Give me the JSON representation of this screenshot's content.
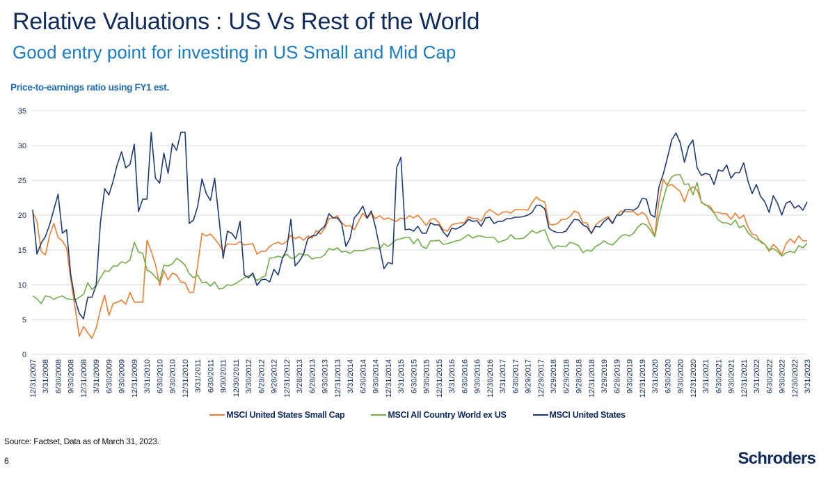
{
  "header": {
    "title": "Relative Valuations : US Vs Rest of the World",
    "subtitle": "Good entry point for investing in US Small and Mid Cap"
  },
  "footer": {
    "source": "Source: Factset, Data as of March 31, 2023.",
    "page_number": "6",
    "logo": "Schroders"
  },
  "colors": {
    "title": "#0f2b5b",
    "subtitle": "#1b7bc4",
    "small_cap": "#ed7d31",
    "acwi_ex_us": "#70ad47",
    "us": "#1f3a73"
  },
  "chart_data": {
    "type": "line",
    "title": "Price-to-earnings ratio using FY1 est.",
    "xlabel": "",
    "ylabel": "",
    "ylim": [
      0,
      35
    ],
    "y_ticks": [
      0,
      5,
      10,
      15,
      20,
      25,
      30,
      35
    ],
    "grid": "horizontal",
    "legend_position": "bottom",
    "x_tick_labels": [
      "12/31/2007",
      "3/31/2008",
      "6/30/2008",
      "9/30/2008",
      "12/31/2008",
      "3/31/2009",
      "6/30/2009",
      "9/30/2009",
      "12/31/2009",
      "3/31/2010",
      "6/30/2010",
      "9/30/2010",
      "12/31/2010",
      "3/31/2011",
      "6/30/2011",
      "9/30/2011",
      "12/30/2011",
      "3/30/2012",
      "6/29/2012",
      "9/28/2012",
      "12/31/2012",
      "3/28/2013",
      "6/28/2013",
      "9/30/2013",
      "12/31/2013",
      "3/31/2014",
      "6/30/2014",
      "9/30/2014",
      "12/31/2014",
      "3/31/2015",
      "6/30/2015",
      "9/30/2015",
      "12/31/2015",
      "3/31/2016",
      "6/30/2016",
      "9/30/2016",
      "12/30/2016",
      "3/31/2017",
      "6/30/2017",
      "9/29/2017",
      "12/29/2017",
      "3/29/2018",
      "6/29/2018",
      "9/28/2018",
      "12/31/2018",
      "3/29/2019",
      "6/28/2019",
      "9/30/2019",
      "12/31/2019",
      "3/31/2020",
      "6/30/2020",
      "9/30/2020",
      "12/31/2020",
      "3/31/2021",
      "6/30/2021",
      "9/30/2021",
      "12/31/2021",
      "3/31/2022",
      "6/30/2022",
      "9/30/2022",
      "12/30/2022",
      "3/31/2023"
    ],
    "series": [
      {
        "name": "MSCI United States Small Cap",
        "color": "#ed7d31",
        "values": [
          20.4,
          19.1,
          14.8,
          14.3,
          17.1,
          18.8,
          16.8,
          16.3,
          15.3,
          10.8,
          6.8,
          2.6,
          4.0,
          3.1,
          2.3,
          3.8,
          6.4,
          8.5,
          5.6,
          7.3,
          7.5,
          7.8,
          7.2,
          8.9,
          7.5,
          7.5,
          7.5,
          16.4,
          14.8,
          12.9,
          9.9,
          12.0,
          10.7,
          11.7,
          11.4,
          10.4,
          10.3,
          8.9,
          8.9,
          12.9,
          17.4,
          17.0,
          17.3,
          16.6,
          15.8,
          14.8,
          15.9,
          15.8,
          15.8,
          16.2,
          15.7,
          15.8,
          15.9,
          14.4,
          14.8,
          14.8,
          15.5,
          15.9,
          16.1,
          15.8,
          16.2,
          17.1,
          16.6,
          16.9,
          16.4,
          17.0,
          16.7,
          17.8,
          17.3,
          18.1,
          19.5,
          19.6,
          19.9,
          18.9,
          18.4,
          18.5,
          17.9,
          19.1,
          20.3,
          19.5,
          20.3,
          19.5,
          19.9,
          19.4,
          19.6,
          19.3,
          19.1,
          19.6,
          19.4,
          19.9,
          19.6,
          20.0,
          19.3,
          18.5,
          19.4,
          19.5,
          18.9,
          17.9,
          17.7,
          18.6,
          18.8,
          18.9,
          18.9,
          19.8,
          19.5,
          19.5,
          19.1,
          20.3,
          20.8,
          20.4,
          20.0,
          20.4,
          20.5,
          20.3,
          20.8,
          20.8,
          20.8,
          20.7,
          21.8,
          22.6,
          22.1,
          21.9,
          18.7,
          18.6,
          18.8,
          19.4,
          19.4,
          19.8,
          20.6,
          20.3,
          18.9,
          18.9,
          17.3,
          18.6,
          19.1,
          19.5,
          19.8,
          18.9,
          20.0,
          20.6,
          20.5,
          20.5,
          20.5,
          20.0,
          20.4,
          19.9,
          18.4,
          17.1,
          22.1,
          25.1,
          24.2,
          24.4,
          23.9,
          23.4,
          21.9,
          23.6,
          24.1,
          23.6,
          21.9,
          21.4,
          21.3,
          20.4,
          20.4,
          20.2,
          20.2,
          19.4,
          20.3,
          19.5,
          20.0,
          18.3,
          17.3,
          17.1,
          16.1,
          15.8,
          14.8,
          15.8,
          15.2,
          14.3,
          15.9,
          16.6,
          16.0,
          17.0,
          16.3,
          16.3
        ]
      },
      {
        "name": "MSCI All Country World ex US",
        "color": "#70ad47",
        "values": [
          8.4,
          8.0,
          7.3,
          8.4,
          8.3,
          7.9,
          8.2,
          8.4,
          8.0,
          7.9,
          7.8,
          8.2,
          8.6,
          10.3,
          9.3,
          9.9,
          11.0,
          12.0,
          11.9,
          12.7,
          12.7,
          13.3,
          13.1,
          13.6,
          16.1,
          14.7,
          14.5,
          12.1,
          11.8,
          11.1,
          10.5,
          12.8,
          12.7,
          13.0,
          13.8,
          13.4,
          12.8,
          11.6,
          11.0,
          11.4,
          10.3,
          10.4,
          9.8,
          10.4,
          9.4,
          9.5,
          10.0,
          9.9,
          10.2,
          10.6,
          11.0,
          11.3,
          11.3,
          10.6,
          11.0,
          11.3,
          13.8,
          13.9,
          14.1,
          13.9,
          14.4,
          13.8,
          13.9,
          14.5,
          14.3,
          14.3,
          13.7,
          13.9,
          13.9,
          14.3,
          15.2,
          15.0,
          15.3,
          14.7,
          14.8,
          14.5,
          14.9,
          14.9,
          14.9,
          15.1,
          15.3,
          15.3,
          15.2,
          15.9,
          15.5,
          16.0,
          16.5,
          16.6,
          16.8,
          16.8,
          15.9,
          16.6,
          15.5,
          15.2,
          16.3,
          16.3,
          16.4,
          15.8,
          15.9,
          16.1,
          16.3,
          16.4,
          16.8,
          17.2,
          16.7,
          17.0,
          17.0,
          16.8,
          16.8,
          16.8,
          16.1,
          16.3,
          16.5,
          17.2,
          16.6,
          16.6,
          16.7,
          17.2,
          17.8,
          17.4,
          17.7,
          17.9,
          16.3,
          15.2,
          15.6,
          15.5,
          15.5,
          16.1,
          15.9,
          15.6,
          14.6,
          15.0,
          14.8,
          15.5,
          15.8,
          16.3,
          15.9,
          15.7,
          16.3,
          17.0,
          17.2,
          17.0,
          17.4,
          18.3,
          18.8,
          18.6,
          17.8,
          16.9,
          19.9,
          22.3,
          24.4,
          25.5,
          25.8,
          25.8,
          24.4,
          24.5,
          22.9,
          24.7,
          21.8,
          21.5,
          21.0,
          20.3,
          19.3,
          18.9,
          18.9,
          18.6,
          19.3,
          18.2,
          18.5,
          17.5,
          16.9,
          16.5,
          16.3,
          15.8,
          15.0,
          15.2,
          14.8,
          14.1,
          14.6,
          14.8,
          14.6,
          15.6,
          15.3,
          16.0
        ]
      },
      {
        "name": "MSCI United States",
        "color": "#1f3a73",
        "values": [
          20.8,
          14.4,
          16.0,
          16.9,
          18.6,
          20.8,
          23.0,
          17.4,
          17.9,
          11.4,
          7.9,
          5.9,
          5.1,
          8.2,
          8.2,
          9.9,
          18.9,
          23.8,
          22.9,
          24.9,
          27.3,
          29.1,
          26.8,
          27.3,
          30.2,
          20.5,
          22.3,
          22.3,
          31.9,
          25.3,
          24.6,
          28.9,
          26.0,
          30.3,
          29.3,
          31.9,
          31.9,
          18.8,
          19.3,
          21.3,
          25.2,
          23.1,
          22.1,
          25.3,
          19.6,
          13.8,
          17.7,
          17.4,
          16.6,
          19.1,
          11.4,
          11.0,
          11.7,
          9.9,
          10.7,
          10.8,
          10.4,
          12.2,
          11.4,
          13.8,
          15.0,
          19.4,
          12.7,
          13.4,
          14.4,
          16.6,
          17.0,
          17.1,
          17.9,
          18.4,
          20.2,
          19.6,
          19.6,
          18.8,
          15.5,
          16.7,
          19.6,
          20.3,
          21.3,
          19.6,
          20.6,
          18.3,
          15.3,
          12.3,
          13.2,
          13.0,
          26.8,
          28.3,
          17.9,
          18.0,
          17.7,
          18.4,
          17.4,
          17.4,
          18.9,
          18.6,
          18.6,
          17.6,
          16.9,
          18.1,
          18.0,
          18.3,
          18.7,
          19.4,
          19.1,
          19.2,
          18.4,
          19.6,
          19.7,
          18.8,
          19.1,
          19.1,
          19.5,
          19.5,
          19.7,
          19.7,
          19.8,
          20.0,
          20.4,
          21.4,
          21.4,
          20.9,
          18.1,
          17.7,
          17.5,
          17.5,
          17.7,
          18.6,
          19.4,
          19.3,
          18.6,
          18.3,
          17.4,
          18.4,
          18.3,
          19.1,
          19.6,
          18.8,
          20.0,
          20.0,
          20.8,
          20.8,
          20.7,
          21.1,
          22.4,
          22.3,
          20.1,
          19.7,
          24.1,
          25.9,
          28.3,
          30.8,
          31.8,
          30.4,
          27.6,
          29.9,
          30.8,
          26.8,
          25.7,
          26.0,
          25.8,
          24.4,
          26.5,
          26.3,
          27.2,
          25.3,
          26.1,
          26.1,
          27.5,
          24.9,
          23.1,
          24.4,
          22.7,
          21.9,
          20.4,
          22.8,
          21.7,
          20.0,
          21.7,
          22.0,
          21.0,
          21.4,
          20.7,
          21.9
        ]
      }
    ]
  }
}
